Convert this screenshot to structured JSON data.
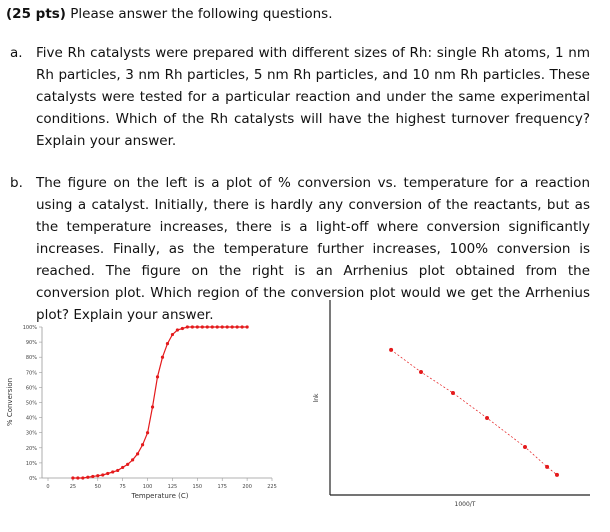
{
  "header": {
    "points": "(25 pts)",
    "text": "Please answer the following questions."
  },
  "questions": [
    {
      "label": "a.",
      "text": "Five Rh catalysts were prepared with different sizes of Rh: single Rh atoms, 1 nm Rh particles, 3 nm Rh particles, 5 nm Rh particles, and 10 nm Rh particles.  These catalysts were tested for a particular reaction and under the same experimental conditions. Which of the Rh catalysts will have the highest turnover frequency?  Explain your answer."
    },
    {
      "label": "b.",
      "text": "The figure on the left is a plot of % conversion vs. temperature for a reaction using a catalyst.   Initially, there is hardly any conversion of the reactants, but as the temperature increases, there is a light-off where conversion significantly increases.  Finally, as the temperature further increases, 100% conversion is reached.  The figure on the right is an Arrhenius plot obtained from the conversion plot.  Which region of the conversion plot would we get the Arrhenius plot?  Explain your answer."
    }
  ],
  "chart_data": [
    {
      "type": "line",
      "x_label": "Temperature (C)",
      "y_label": "% Conversion",
      "x": [
        25,
        30,
        35,
        40,
        45,
        50,
        55,
        60,
        65,
        70,
        75,
        80,
        85,
        90,
        95,
        100,
        105,
        110,
        115,
        120,
        125,
        130,
        135,
        140,
        145,
        150,
        155,
        160,
        165,
        170,
        175,
        180,
        185,
        190,
        195,
        200
      ],
      "series": [
        {
          "color": "#e41a1c",
          "values": [
            0,
            0,
            0,
            0.5,
            1,
            1.5,
            2,
            3,
            4,
            5,
            7,
            9,
            12,
            16,
            22,
            30,
            47,
            67,
            80,
            89,
            95,
            98,
            99,
            100,
            100,
            100,
            100,
            100,
            100,
            100,
            100,
            100,
            100,
            100,
            100,
            100
          ]
        }
      ],
      "xlim": [
        0,
        225
      ],
      "xticks": [
        0,
        25,
        50,
        75,
        100,
        125,
        150,
        175,
        200,
        225
      ],
      "ylim": [
        0,
        100
      ],
      "yticks": [
        {
          "value": 0,
          "label": "0%"
        },
        {
          "value": 10,
          "label": "10%"
        },
        {
          "value": 20,
          "label": "20%"
        },
        {
          "value": 30,
          "label": "30%"
        },
        {
          "value": 40,
          "label": "40%"
        },
        {
          "value": 50,
          "label": "50%"
        },
        {
          "value": 60,
          "label": "60%"
        },
        {
          "value": 70,
          "label": "70%"
        },
        {
          "value": 80,
          "label": "80%"
        },
        {
          "value": 90,
          "label": "90%"
        },
        {
          "value": 100,
          "label": "100%"
        }
      ]
    },
    {
      "type": "scatter",
      "x_label": "1000/T",
      "y_label": "lnk",
      "trendline": "dashed",
      "x": [
        2.35,
        3.5,
        4.73,
        6.04,
        7.5,
        8.35,
        8.73
      ],
      "series": [
        {
          "color": "#e41a1c",
          "values": [
            7.44,
            6.31,
            5.23,
            3.95,
            2.46,
            1.44,
            1.03
          ]
        }
      ],
      "xlim": [
        0,
        10
      ],
      "ylim": [
        0,
        10
      ]
    }
  ]
}
